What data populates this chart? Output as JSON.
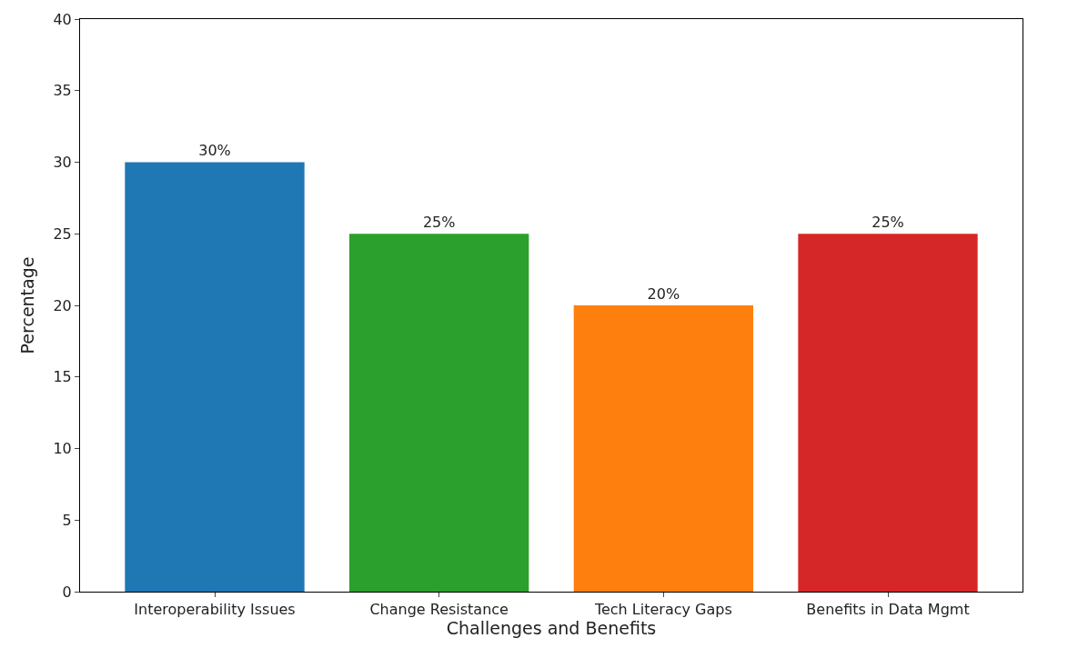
{
  "chart_data": {
    "type": "bar",
    "categories": [
      "Interoperability Issues",
      "Change Resistance",
      "Tech Literacy Gaps",
      "Benefits in Data Mgmt"
    ],
    "values": [
      30,
      25,
      20,
      25
    ],
    "colors": [
      "#1f77b4",
      "#2ca02c",
      "#ff7f0e",
      "#d62728"
    ],
    "value_labels": [
      "30%",
      "25%",
      "20%",
      "25%"
    ],
    "xlabel": "Challenges and Benefits",
    "ylabel": "Percentage",
    "ylim": [
      0,
      40
    ],
    "yticks": [
      0,
      5,
      10,
      15,
      20,
      25,
      30,
      35,
      40
    ]
  }
}
